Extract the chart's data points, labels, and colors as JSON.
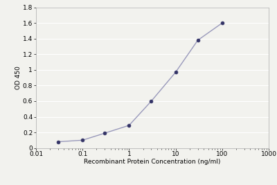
{
  "x": [
    0.03,
    0.1,
    0.3,
    1,
    3,
    10,
    30,
    100
  ],
  "y": [
    0.08,
    0.1,
    0.19,
    0.29,
    0.6,
    0.97,
    1.38,
    1.6
  ],
  "xlim": [
    0.01,
    1000
  ],
  "ylim": [
    0,
    1.8
  ],
  "xlabel": "Recombinant Protein Concentration (ng/ml)",
  "ylabel": "OD 450",
  "yticks": [
    0,
    0.2,
    0.4,
    0.6,
    0.8,
    1.0,
    1.2,
    1.4,
    1.6,
    1.8
  ],
  "ytick_labels": [
    "0",
    "0.2",
    "0.4",
    "0.6",
    "0.8",
    "1",
    "1.2",
    "1.4",
    "1.6",
    "1.8"
  ],
  "xtick_positions": [
    0.01,
    0.1,
    1,
    10,
    100,
    1000
  ],
  "xtick_labels": [
    "0.01",
    "0.1",
    "1",
    "10",
    "100",
    "1000"
  ],
  "line_color": "#9999bb",
  "marker_color": "#333366",
  "marker_size": 3.5,
  "line_width": 1.0,
  "plot_bg": "#f2f2ee",
  "figure_bg": "#f2f2ee",
  "grid_color": "#ffffff",
  "grid_linewidth": 0.8,
  "tick_fontsize": 6.5,
  "label_fontsize": 6.5,
  "ylabel_fontsize": 6.5
}
